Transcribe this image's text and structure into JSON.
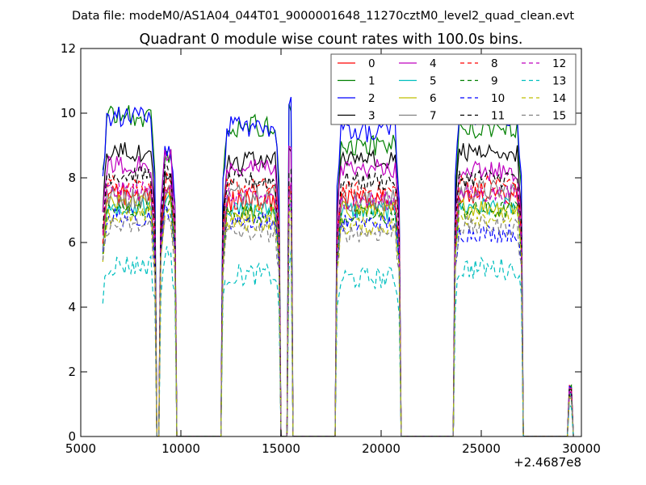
{
  "suptitle": "Data file: modeM0/AS1A04_044T01_9000001648_11270cztM0_level2_quad_clean.evt",
  "chart_data": {
    "type": "line",
    "title": "Quadrant 0 module wise count rates with 100.0s bins.",
    "xlabel": "",
    "ylabel": "",
    "x_offset_label": "+2.4687e8",
    "xlim": [
      5000,
      30000
    ],
    "ylim": [
      0,
      12
    ],
    "x_ticks": [
      5000,
      10000,
      15000,
      20000,
      25000,
      30000
    ],
    "x_tick_labels": [
      "5000",
      "10000",
      "15000",
      "20000",
      "25000",
      "30000"
    ],
    "y_ticks": [
      0,
      2,
      4,
      6,
      8,
      10,
      12
    ],
    "y_tick_labels": [
      "0",
      "2",
      "4",
      "6",
      "8",
      "10",
      "12"
    ],
    "grid": false,
    "legend_position": "top-right",
    "legend_columns": 4,
    "x_note": "x values are offsets (s) from 2.4687e8; all series are 100 s binned count rates",
    "segments": [
      {
        "x_start": 6100,
        "x_end": 8700
      },
      {
        "x_start": 9000,
        "x_end": 9700
      },
      {
        "x_start": 12100,
        "x_end": 14900
      },
      {
        "x_start": 15400,
        "x_end": 15500
      },
      {
        "x_start": 17800,
        "x_end": 20900
      },
      {
        "x_start": 23700,
        "x_end": 27000
      },
      {
        "x_start": 29400,
        "x_end": 29500
      }
    ],
    "series": [
      {
        "name": "0",
        "color": "#ff0000",
        "dash": "solid",
        "levels": [
          7.5,
          7.6,
          7.3,
          7.5,
          7.3,
          7.5,
          1.5
        ],
        "noise": 0.35
      },
      {
        "name": "1",
        "color": "#008000",
        "dash": "solid",
        "levels": [
          9.9,
          8.8,
          9.6,
          10.2,
          9.0,
          9.5,
          1.5
        ],
        "noise": 0.35
      },
      {
        "name": "2",
        "color": "#0000ff",
        "dash": "solid",
        "levels": [
          9.9,
          8.8,
          9.6,
          10.2,
          9.4,
          9.9,
          1.5
        ],
        "noise": 0.35
      },
      {
        "name": "3",
        "color": "#000000",
        "dash": "solid",
        "levels": [
          8.8,
          8.0,
          8.5,
          9.0,
          8.6,
          8.8,
          1.4
        ],
        "noise": 0.3
      },
      {
        "name": "4",
        "color": "#bf00bf",
        "dash": "solid",
        "levels": [
          8.4,
          8.6,
          8.3,
          8.8,
          8.3,
          8.2,
          1.5
        ],
        "noise": 0.3
      },
      {
        "name": "5",
        "color": "#00bfbf",
        "dash": "solid",
        "levels": [
          7.1,
          7.2,
          7.0,
          7.3,
          7.0,
          7.1,
          1.3
        ],
        "noise": 0.3
      },
      {
        "name": "6",
        "color": "#bfbf00",
        "dash": "solid",
        "levels": [
          7.2,
          7.3,
          6.9,
          7.2,
          7.0,
          7.1,
          1.3
        ],
        "noise": 0.3
      },
      {
        "name": "7",
        "color": "#808080",
        "dash": "solid",
        "levels": [
          7.4,
          7.5,
          7.5,
          7.6,
          7.3,
          7.6,
          1.3
        ],
        "noise": 0.35
      },
      {
        "name": "8",
        "color": "#ff0000",
        "dash": "dashed",
        "levels": [
          7.8,
          7.9,
          7.7,
          7.8,
          7.6,
          7.8,
          1.4
        ],
        "noise": 0.3
      },
      {
        "name": "9",
        "color": "#008000",
        "dash": "dashed",
        "levels": [
          7.0,
          7.2,
          6.9,
          7.1,
          6.8,
          7.0,
          1.3
        ],
        "noise": 0.3
      },
      {
        "name": "10",
        "color": "#0000ff",
        "dash": "dashed",
        "levels": [
          6.8,
          7.0,
          6.7,
          6.9,
          6.6,
          6.3,
          1.3
        ],
        "noise": 0.3
      },
      {
        "name": "11",
        "color": "#000000",
        "dash": "dashed",
        "levels": [
          8.1,
          8.2,
          7.9,
          8.2,
          7.9,
          8.0,
          1.4
        ],
        "noise": 0.3
      },
      {
        "name": "12",
        "color": "#bf00bf",
        "dash": "dashed",
        "levels": [
          7.6,
          7.7,
          7.4,
          7.6,
          7.3,
          7.5,
          1.4
        ],
        "noise": 0.3
      },
      {
        "name": "13",
        "color": "#00bfbf",
        "dash": "dashed",
        "levels": [
          5.3,
          5.6,
          5.0,
          5.4,
          4.9,
          5.2,
          1.0
        ],
        "noise": 0.35
      },
      {
        "name": "14",
        "color": "#bfbf00",
        "dash": "dashed",
        "levels": [
          6.8,
          6.9,
          6.6,
          6.9,
          6.5,
          6.8,
          1.2
        ],
        "noise": 0.3
      },
      {
        "name": "15",
        "color": "#808080",
        "dash": "dashed",
        "levels": [
          6.5,
          6.7,
          6.3,
          6.6,
          6.3,
          6.5,
          1.2
        ],
        "noise": 0.3
      }
    ]
  }
}
